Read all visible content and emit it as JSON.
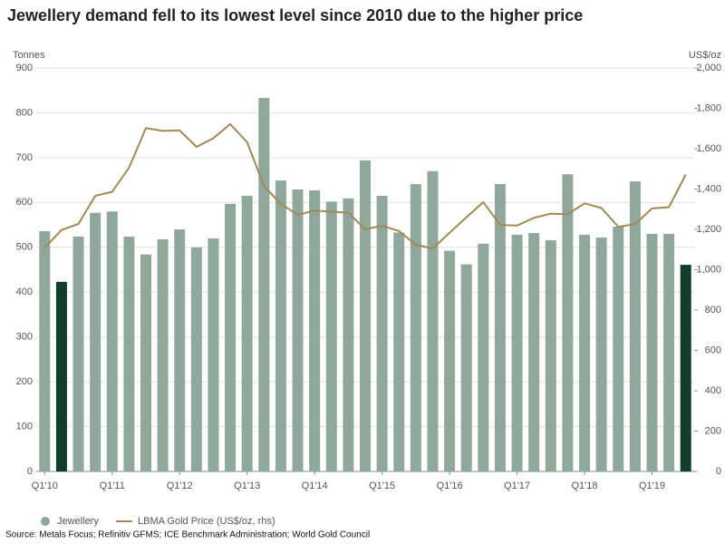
{
  "chart_data": {
    "type": "bar",
    "title": "Jewellery demand fell to its lowest level since 2010 due to the higher price",
    "y_label": "Tonnes",
    "y2_label": "US$/oz",
    "categories": [
      "Q1'10",
      null,
      null,
      null,
      "Q1'11",
      null,
      null,
      null,
      "Q1'12",
      null,
      null,
      null,
      "Q1'13",
      null,
      null,
      null,
      "Q1'14",
      null,
      null,
      null,
      "Q1'15",
      null,
      null,
      null,
      "Q1'16",
      null,
      null,
      null,
      "Q1'17",
      null,
      null,
      null,
      "Q1'18",
      null,
      null,
      null,
      "Q1'19",
      null,
      null
    ],
    "series": [
      {
        "name": "Jewellery",
        "type": "bar",
        "color": "#8fa89b",
        "bar_colors": [
          "#8fa89b",
          "#123d2c",
          "#8fa89b",
          "#8fa89b",
          "#8fa89b",
          "#8fa89b",
          "#8fa89b",
          "#8fa89b",
          "#8fa89b",
          "#8fa89b",
          "#8fa89b",
          "#8fa89b",
          "#8fa89b",
          "#8fa89b",
          "#8fa89b",
          "#8fa89b",
          "#8fa89b",
          "#8fa89b",
          "#8fa89b",
          "#8fa89b",
          "#8fa89b",
          "#8fa89b",
          "#8fa89b",
          "#8fa89b",
          "#8fa89b",
          "#8fa89b",
          "#8fa89b",
          "#8fa89b",
          "#8fa89b",
          "#8fa89b",
          "#8fa89b",
          "#8fa89b",
          "#8fa89b",
          "#8fa89b",
          "#8fa89b",
          "#8fa89b",
          "#8fa89b",
          "#8fa89b",
          "#123d2c"
        ],
        "values": [
          536,
          423,
          524,
          577,
          580,
          524,
          484,
          518,
          540,
          500,
          520,
          597,
          615,
          833,
          649,
          629,
          627,
          602,
          609,
          694,
          615,
          533,
          641,
          670,
          492,
          462,
          508,
          641,
          528,
          532,
          516,
          663,
          528,
          522,
          546,
          647,
          530,
          530,
          461
        ]
      },
      {
        "name": "LBMA Gold Price (US$/oz, rhs)",
        "type": "line",
        "axis": "y2",
        "color": "#a08a55",
        "values": [
          1109,
          1197,
          1227,
          1367,
          1386,
          1506,
          1702,
          1688,
          1691,
          1609,
          1652,
          1722,
          1632,
          1415,
          1326,
          1272,
          1293,
          1288,
          1282,
          1201,
          1218,
          1192,
          1124,
          1105,
          1183,
          1260,
          1335,
          1222,
          1219,
          1257,
          1278,
          1275,
          1329,
          1306,
          1213,
          1226,
          1304,
          1310,
          1472
        ]
      }
    ],
    "ylim": [
      0,
      900
    ],
    "yticks": [
      0,
      100,
      200,
      300,
      400,
      500,
      600,
      700,
      800,
      900
    ],
    "y2lim": [
      0,
      2000
    ],
    "y2ticks": [
      0,
      200,
      400,
      600,
      800,
      {
        "value": 1000,
        "label": "1,000"
      },
      {
        "value": 1200,
        "label": "1,200"
      },
      {
        "value": 1400,
        "label": "1,400"
      },
      {
        "value": 1600,
        "label": "1,600"
      },
      {
        "value": 1800,
        "label": "1,800"
      },
      {
        "value": 2000,
        "label": "2,000"
      }
    ],
    "grid": true,
    "source": "Source: Metals Focus; Refinitiv GFMS; ICE Benchmark Administration; World Gold Council"
  }
}
